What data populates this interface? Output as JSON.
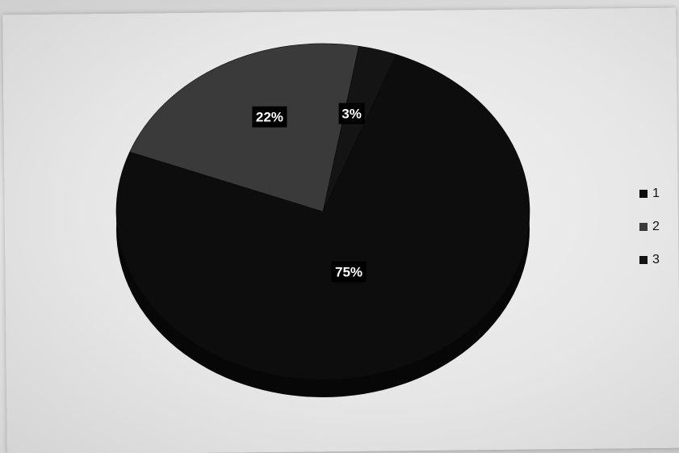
{
  "chart_data": {
    "type": "pie",
    "title": "",
    "categories": [
      "1",
      "2",
      "3"
    ],
    "values": [
      75,
      22,
      3
    ],
    "data_labels": [
      "75%",
      "22%",
      "3%"
    ],
    "colors": [
      "#0d0d0d",
      "#3a3a3a",
      "#141414"
    ],
    "legend": {
      "position": "right",
      "entries": [
        "1",
        "2",
        "3"
      ]
    },
    "style": "3d"
  }
}
